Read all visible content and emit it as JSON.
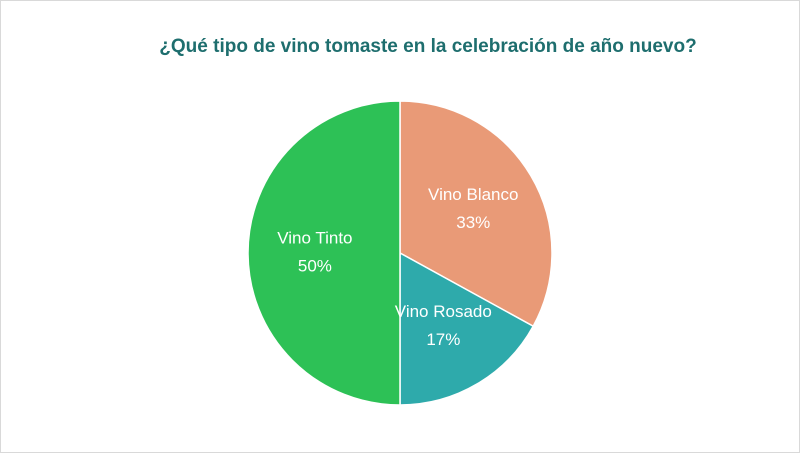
{
  "chart_data": {
    "type": "pie",
    "title": "¿Qué tipo de vino tomaste en la celebración de año nuevo?",
    "categories": [
      "Vino Blanco",
      "Vino Rosado",
      "Vino Tinto"
    ],
    "values": [
      33,
      17,
      50
    ],
    "value_labels": [
      "33%",
      "17%",
      "50%"
    ],
    "colors": [
      "#e99a77",
      "#2eaaab",
      "#2dc156"
    ]
  }
}
